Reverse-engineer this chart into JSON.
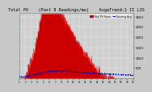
{
  "title": "Total PV    (Past 8 Readings/mo)    AvgaTrend:1 II LIS",
  "title_fontsize": 3.8,
  "bg_color": "#c8c8c8",
  "plot_bg_color": "#d0d0d0",
  "ylim": [
    0,
    3200
  ],
  "yticks": [
    500,
    1000,
    1500,
    2000,
    2500,
    3000
  ],
  "ytick_labels": [
    "500",
    "1000",
    "1500",
    "2000",
    "2500",
    "3000"
  ],
  "red_color": "#cc0000",
  "blue_color": "#0000bb",
  "grid_color": "#ffffff",
  "legend_labels": [
    "Total PV Power",
    "Running Avg"
  ]
}
